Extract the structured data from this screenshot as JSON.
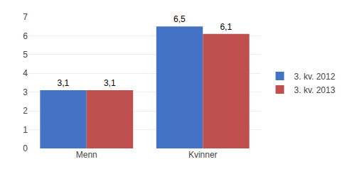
{
  "chart_data": {
    "type": "bar",
    "categories": [
      "Menn",
      "Kvinner"
    ],
    "series": [
      {
        "name": "3. kv. 2012",
        "color": "#4472C4",
        "values": [
          3.1,
          6.5
        ],
        "value_labels": [
          "3,1",
          "6,5"
        ]
      },
      {
        "name": "3. kv. 2013",
        "color": "#C0504D",
        "values": [
          3.1,
          6.1
        ],
        "value_labels": [
          "3,1",
          "6,1"
        ]
      }
    ],
    "ylim": [
      0,
      7
    ],
    "yticks": [
      0,
      1,
      2,
      3,
      4,
      5,
      6,
      7
    ],
    "grid": true,
    "legend": "right",
    "data_labels": true
  }
}
